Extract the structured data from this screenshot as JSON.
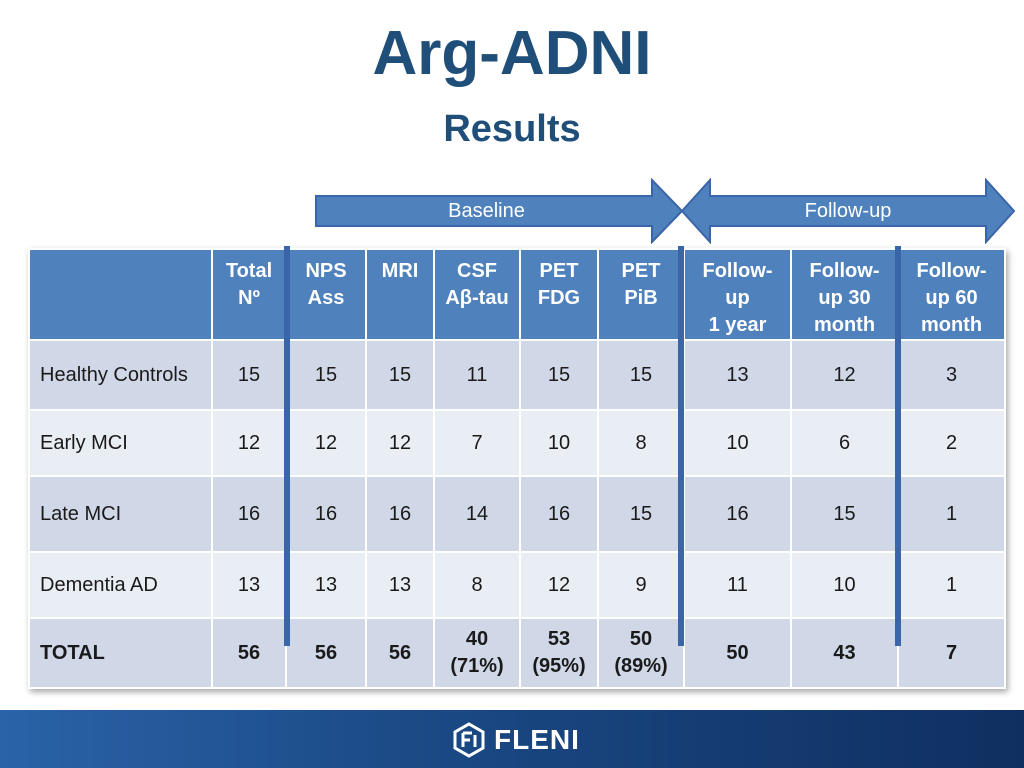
{
  "title": "Arg-ADNI",
  "subtitle": "Results",
  "arrows": {
    "baseline_label": "Baseline",
    "followup_label": "Follow-up",
    "color": "#4f81bd"
  },
  "table": {
    "headers": [
      {
        "lines": [
          ""
        ]
      },
      {
        "lines": [
          "Total",
          "Nº"
        ]
      },
      {
        "lines": [
          "NPS",
          "Ass"
        ]
      },
      {
        "lines": [
          "MRI"
        ]
      },
      {
        "lines": [
          "CSF",
          "Aβ-tau"
        ]
      },
      {
        "lines": [
          "PET",
          "FDG"
        ]
      },
      {
        "lines": [
          "PET",
          "PiB"
        ]
      },
      {
        "lines": [
          "Follow-",
          "up",
          "1 year"
        ]
      },
      {
        "lines": [
          "Follow-",
          "up 30",
          "month"
        ]
      },
      {
        "lines": [
          "Follow-",
          "up 60",
          "month"
        ]
      }
    ],
    "rows": [
      {
        "label": "Healthy Controls",
        "values": [
          "15",
          "15",
          "15",
          "11",
          "15",
          "15",
          "13",
          "12",
          "3"
        ]
      },
      {
        "label": "Early MCI",
        "values": [
          "12",
          "12",
          "12",
          "7",
          "10",
          "8",
          "10",
          "6",
          "2"
        ]
      },
      {
        "label": "Late MCI",
        "values": [
          "16",
          "16",
          "16",
          "14",
          "16",
          "15",
          "16",
          "15",
          "1"
        ]
      },
      {
        "label": "Dementia AD",
        "values": [
          "13",
          "13",
          "13",
          "8",
          "12",
          "9",
          "11",
          "10",
          "1"
        ]
      }
    ],
    "total_row": {
      "label": "TOTAL",
      "values": [
        {
          "main": "56"
        },
        {
          "main": "56"
        },
        {
          "main": "56"
        },
        {
          "main": "40",
          "pct": "(71%)"
        },
        {
          "main": "53",
          "pct": "(95%)"
        },
        {
          "main": "50",
          "pct": "(89%)"
        },
        {
          "main": "50"
        },
        {
          "main": "43"
        },
        {
          "main": "7"
        }
      ]
    },
    "colors": {
      "header_bg": "#4f81bd",
      "row_dark": "#d0d8e8",
      "row_light": "#e9edf4",
      "divider": "#3a65a8"
    }
  },
  "footer": {
    "logo_text": "FLENI"
  }
}
